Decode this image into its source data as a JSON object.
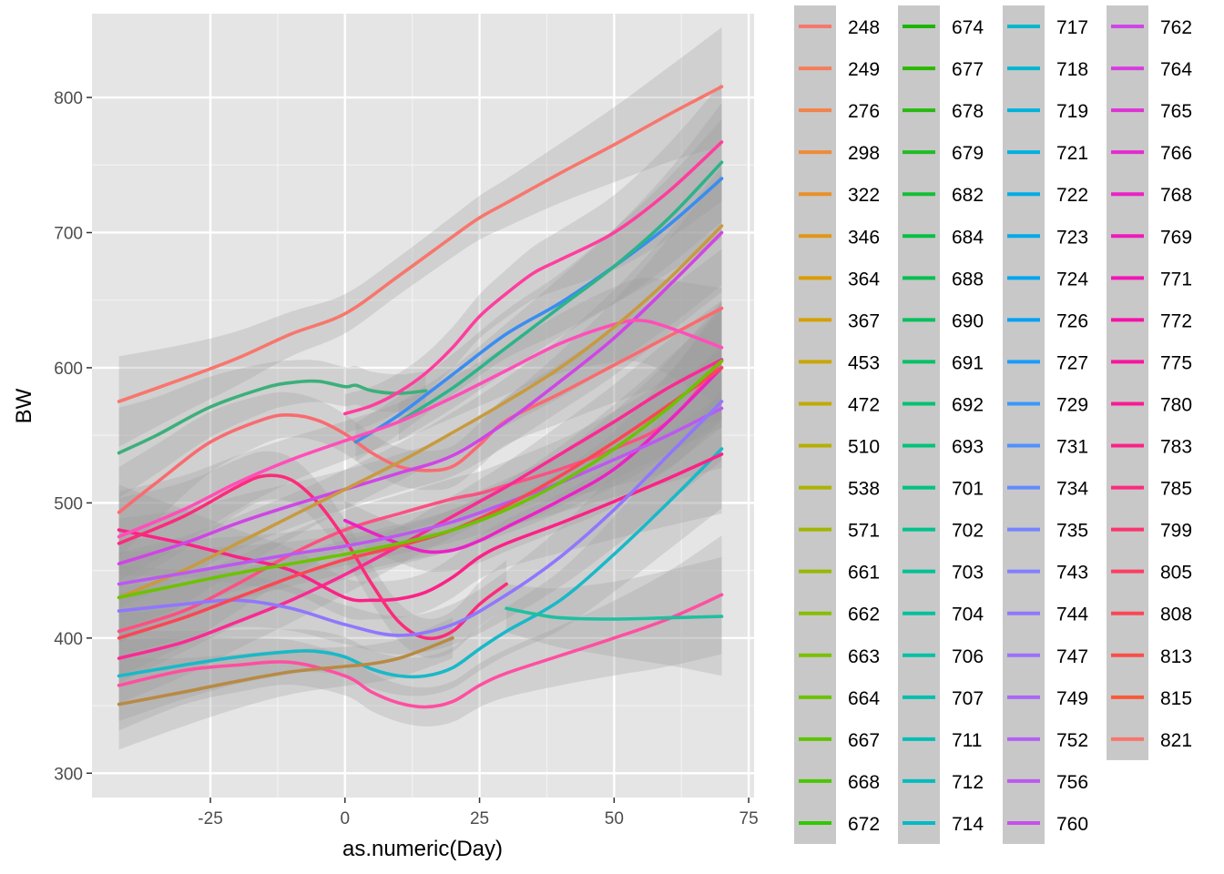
{
  "chart_data": {
    "type": "line",
    "xlabel": "as.numeric(Day)",
    "ylabel": "BW",
    "xlim": [
      -47,
      76
    ],
    "ylim": [
      282,
      862
    ],
    "x_ticks": [
      -25,
      0,
      25,
      50,
      75
    ],
    "y_ticks": [
      300,
      400,
      500,
      600,
      700,
      800
    ],
    "grid": true,
    "smoothed": true,
    "confidence_bands": true,
    "legend_position": "right",
    "legend_columns": 4,
    "panel_background": "#e5e5e5",
    "band_color": "#999999",
    "legend_items": [
      {
        "label": "248",
        "color": "#F8766D"
      },
      {
        "label": "249",
        "color": "#F67D5B"
      },
      {
        "label": "276",
        "color": "#F3834A"
      },
      {
        "label": "298",
        "color": "#EF8A38"
      },
      {
        "label": "322",
        "color": "#E99026"
      },
      {
        "label": "346",
        "color": "#E29614"
      },
      {
        "label": "364",
        "color": "#DB9C00"
      },
      {
        "label": "367",
        "color": "#D3A100"
      },
      {
        "label": "453",
        "color": "#CAA600"
      },
      {
        "label": "472",
        "color": "#C0AA00"
      },
      {
        "label": "510",
        "color": "#B6AF00"
      },
      {
        "label": "538",
        "color": "#ABB300"
      },
      {
        "label": "571",
        "color": "#A0B600"
      },
      {
        "label": "661",
        "color": "#94BA00"
      },
      {
        "label": "662",
        "color": "#88BD00"
      },
      {
        "label": "663",
        "color": "#7BC000"
      },
      {
        "label": "664",
        "color": "#6DC200"
      },
      {
        "label": "667",
        "color": "#5DC400"
      },
      {
        "label": "668",
        "color": "#4AC600"
      },
      {
        "label": "672",
        "color": "#31C800"
      },
      {
        "label": "674",
        "color": "#1AB600"
      },
      {
        "label": "677",
        "color": "#2AB800"
      },
      {
        "label": "678",
        "color": "#27BA0F"
      },
      {
        "label": "679",
        "color": "#1FBC26"
      },
      {
        "label": "682",
        "color": "#14BD36"
      },
      {
        "label": "684",
        "color": "#04BF44"
      },
      {
        "label": "688",
        "color": "#00C050"
      },
      {
        "label": "690",
        "color": "#00C15B"
      },
      {
        "label": "691",
        "color": "#00C166"
      },
      {
        "label": "692",
        "color": "#00C270"
      },
      {
        "label": "693",
        "color": "#00C27A"
      },
      {
        "label": "701",
        "color": "#00C283"
      },
      {
        "label": "702",
        "color": "#00C28C"
      },
      {
        "label": "703",
        "color": "#00C295"
      },
      {
        "label": "704",
        "color": "#00C19E"
      },
      {
        "label": "706",
        "color": "#00C0A6"
      },
      {
        "label": "707",
        "color": "#00BFAE"
      },
      {
        "label": "711",
        "color": "#00BEB6"
      },
      {
        "label": "712",
        "color": "#00BCBE"
      },
      {
        "label": "714",
        "color": "#00BAC5"
      },
      {
        "label": "717",
        "color": "#00B8CC"
      },
      {
        "label": "718",
        "color": "#00B6D3"
      },
      {
        "label": "719",
        "color": "#00B3DA"
      },
      {
        "label": "721",
        "color": "#00B0E0"
      },
      {
        "label": "722",
        "color": "#00ADE6"
      },
      {
        "label": "723",
        "color": "#00A9EB"
      },
      {
        "label": "724",
        "color": "#00A5F0"
      },
      {
        "label": "726",
        "color": "#00A1F5"
      },
      {
        "label": "727",
        "color": "#1A9CF8"
      },
      {
        "label": "729",
        "color": "#3A97FB"
      },
      {
        "label": "731",
        "color": "#5091FD"
      },
      {
        "label": "734",
        "color": "#628BFE"
      },
      {
        "label": "735",
        "color": "#7385FF"
      },
      {
        "label": "743",
        "color": "#827EFF"
      },
      {
        "label": "744",
        "color": "#9077FD"
      },
      {
        "label": "747",
        "color": "#9C70FB"
      },
      {
        "label": "749",
        "color": "#A868F8"
      },
      {
        "label": "752",
        "color": "#B360F5"
      },
      {
        "label": "756",
        "color": "#BD58F0"
      },
      {
        "label": "760",
        "color": "#C64FEB"
      },
      {
        "label": "762",
        "color": "#CF46E5"
      },
      {
        "label": "764",
        "color": "#D73DDE"
      },
      {
        "label": "765",
        "color": "#DE33D7"
      },
      {
        "label": "766",
        "color": "#E52ACF"
      },
      {
        "label": "768",
        "color": "#EA22C6"
      },
      {
        "label": "769",
        "color": "#EF1ABD"
      },
      {
        "label": "771",
        "color": "#F314B3"
      },
      {
        "label": "772",
        "color": "#F612A9"
      },
      {
        "label": "775",
        "color": "#F9149E"
      },
      {
        "label": "780",
        "color": "#FA1A93"
      },
      {
        "label": "783",
        "color": "#FB2287"
      },
      {
        "label": "785",
        "color": "#FC2B7B"
      },
      {
        "label": "799",
        "color": "#FC346F"
      },
      {
        "label": "805",
        "color": "#FC3D62"
      },
      {
        "label": "808",
        "color": "#FB4655"
      },
      {
        "label": "813",
        "color": "#FA4F48"
      },
      {
        "label": "815",
        "color": "#F95839"
      },
      {
        "label": "821",
        "color": "#F8766D"
      }
    ],
    "series": [
      {
        "name": "248",
        "color": "#F8766D",
        "x": [
          -42,
          -30,
          -20,
          -10,
          0,
          10,
          20,
          25,
          30,
          40,
          50,
          60,
          70
        ],
        "y": [
          575,
          592,
          607,
          625,
          640,
          668,
          697,
          711,
          722,
          744,
          765,
          787,
          808
        ]
      },
      {
        "name": "799",
        "color": "#FF4FA0",
        "x": [
          -42,
          -30,
          -20,
          -10,
          0,
          5,
          10,
          15,
          20,
          25,
          30,
          40,
          50,
          60,
          70
        ],
        "y": [
          365,
          376,
          380,
          382,
          372,
          360,
          352,
          349,
          353,
          365,
          374,
          387,
          400,
          414,
          432
        ]
      },
      {
        "name": "714",
        "color": "#1AB8C8",
        "x": [
          -42,
          -30,
          -20,
          -10,
          -5,
          0,
          5,
          10,
          15,
          20,
          25,
          30,
          40,
          50,
          60,
          70
        ],
        "y": [
          372,
          380,
          386,
          390,
          390,
          386,
          377,
          372,
          372,
          378,
          392,
          405,
          428,
          462,
          500,
          540
        ]
      },
      {
        "name": "672",
        "color": "#B88A45",
        "x": [
          -42,
          -30,
          -20,
          -10,
          0,
          5,
          10,
          15,
          20
        ],
        "y": [
          351,
          360,
          368,
          375,
          379,
          381,
          385,
          392,
          400
        ]
      },
      {
        "name": "704",
        "color": "#20BFA0",
        "x": [
          30,
          35,
          40,
          50,
          60,
          70
        ],
        "y": [
          422,
          418,
          415,
          414,
          415,
          416
        ]
      },
      {
        "name": "702",
        "color": "#3DAF7A",
        "x": [
          -42,
          -35,
          -25,
          -15,
          -10,
          -5,
          0,
          2,
          5,
          10,
          15
        ],
        "y": [
          537,
          550,
          571,
          585,
          589,
          590,
          586,
          587,
          583,
          581,
          583
        ]
      },
      {
        "name": "813",
        "color": "#F96B70",
        "x": [
          -42,
          -35,
          -25,
          -15,
          -10,
          -5,
          0,
          5,
          10,
          15,
          20,
          25,
          30,
          40,
          50,
          60,
          70
        ],
        "y": [
          493,
          515,
          545,
          562,
          565,
          561,
          551,
          537,
          527,
          524,
          527,
          543,
          561,
          581,
          602,
          623,
          644
        ]
      },
      {
        "name": "805",
        "color": "#FB5182",
        "x": [
          -42,
          -30,
          -20,
          -10,
          0,
          10,
          20,
          25,
          30,
          40,
          50,
          60,
          70
        ],
        "y": [
          405,
          420,
          440,
          462,
          480,
          492,
          503,
          507,
          513,
          525,
          540,
          560,
          605
        ]
      },
      {
        "name": "780",
        "color": "#FA2A93",
        "x": [
          -42,
          -30,
          -20,
          -10,
          0,
          10,
          15,
          20,
          25,
          30,
          40,
          50,
          60,
          70
        ],
        "y": [
          385,
          397,
          412,
          428,
          447,
          468,
          479,
          490,
          501,
          512,
          536,
          560,
          585,
          606
        ]
      },
      {
        "name": "783",
        "color": "#FB2287",
        "x": [
          -42,
          -30,
          -20,
          -10,
          0,
          5,
          10,
          15,
          20,
          25,
          30,
          40,
          50,
          60,
          70
        ],
        "y": [
          480,
          470,
          460,
          450,
          430,
          428,
          429,
          434,
          445,
          460,
          470,
          485,
          501,
          518,
          536
        ]
      },
      {
        "name": "785",
        "color": "#FC2B7B",
        "x": [
          -42,
          -30,
          -20,
          -15,
          -10,
          -5,
          0,
          5,
          10,
          15,
          20,
          25,
          30
        ],
        "y": [
          470,
          490,
          512,
          520,
          517,
          500,
          473,
          440,
          412,
          400,
          405,
          425,
          440
        ]
      },
      {
        "name": "768",
        "color": "#EA22C6",
        "x": [
          0,
          5,
          10,
          15,
          20,
          25,
          30,
          40,
          50,
          60,
          70
        ],
        "y": [
          487,
          478,
          470,
          464,
          465,
          472,
          482,
          502,
          525,
          560,
          600
        ]
      },
      {
        "name": "772",
        "color": "#FF3E9E",
        "x": [
          0,
          5,
          10,
          15,
          20,
          25,
          30,
          35,
          40,
          50,
          60,
          70
        ],
        "y": [
          566,
          572,
          582,
          596,
          615,
          638,
          655,
          670,
          680,
          700,
          730,
          767
        ]
      },
      {
        "name": "726",
        "color": "#3A8DF0",
        "x": [
          2,
          10,
          20,
          30,
          40,
          50,
          60,
          70
        ],
        "y": [
          545,
          565,
          595,
          625,
          648,
          675,
          705,
          740
        ]
      },
      {
        "name": "693",
        "color": "#2DB38A",
        "x": [
          10,
          20,
          30,
          40,
          50,
          60,
          70
        ],
        "y": [
          560,
          585,
          615,
          645,
          675,
          710,
          752
        ]
      },
      {
        "name": "762",
        "color": "#CF46E5",
        "x": [
          -42,
          -30,
          -20,
          -10,
          0,
          10,
          20,
          30,
          40,
          50,
          60,
          70
        ],
        "y": [
          455,
          470,
          485,
          498,
          510,
          522,
          535,
          560,
          590,
          622,
          660,
          700
        ]
      },
      {
        "name": "771",
        "color": "#FF4FB8",
        "x": [
          -42,
          -30,
          -20,
          -10,
          0,
          10,
          20,
          30,
          40,
          50,
          55,
          60,
          70
        ],
        "y": [
          475,
          495,
          515,
          532,
          546,
          560,
          578,
          598,
          618,
          632,
          635,
          630,
          615
        ]
      },
      {
        "name": "510",
        "color": "#C89A40",
        "x": [
          -42,
          -30,
          -20,
          -10,
          0,
          10,
          20,
          30,
          40,
          50,
          60,
          70
        ],
        "y": [
          430,
          450,
          470,
          490,
          510,
          530,
          552,
          575,
          600,
          630,
          665,
          705
        ]
      },
      {
        "name": "756",
        "color": "#BD58F0",
        "x": [
          -42,
          -30,
          -20,
          -10,
          0,
          10,
          20,
          30,
          40,
          50,
          60,
          70
        ],
        "y": [
          440,
          448,
          455,
          462,
          468,
          476,
          486,
          500,
          515,
          532,
          550,
          570
        ]
      },
      {
        "name": "744",
        "color": "#9077FD",
        "x": [
          -42,
          -30,
          -20,
          -10,
          0,
          10,
          20,
          30,
          40,
          50,
          60,
          70
        ],
        "y": [
          420,
          425,
          428,
          422,
          410,
          402,
          410,
          432,
          460,
          495,
          535,
          575
        ]
      },
      {
        "name": "808",
        "color": "#FB4655",
        "x": [
          -42,
          -30,
          -20,
          -10,
          0,
          10,
          20,
          30,
          40,
          50,
          60,
          70
        ],
        "y": [
          400,
          415,
          430,
          445,
          458,
          468,
          480,
          498,
          520,
          545,
          572,
          600
        ]
      },
      {
        "name": "664",
        "color": "#6DC200",
        "x": [
          -42,
          -30,
          -20,
          -10,
          0,
          10,
          20,
          30,
          40,
          50,
          60,
          70
        ],
        "y": [
          430,
          440,
          448,
          455,
          462,
          470,
          480,
          495,
          515,
          540,
          570,
          605
        ]
      }
    ]
  }
}
